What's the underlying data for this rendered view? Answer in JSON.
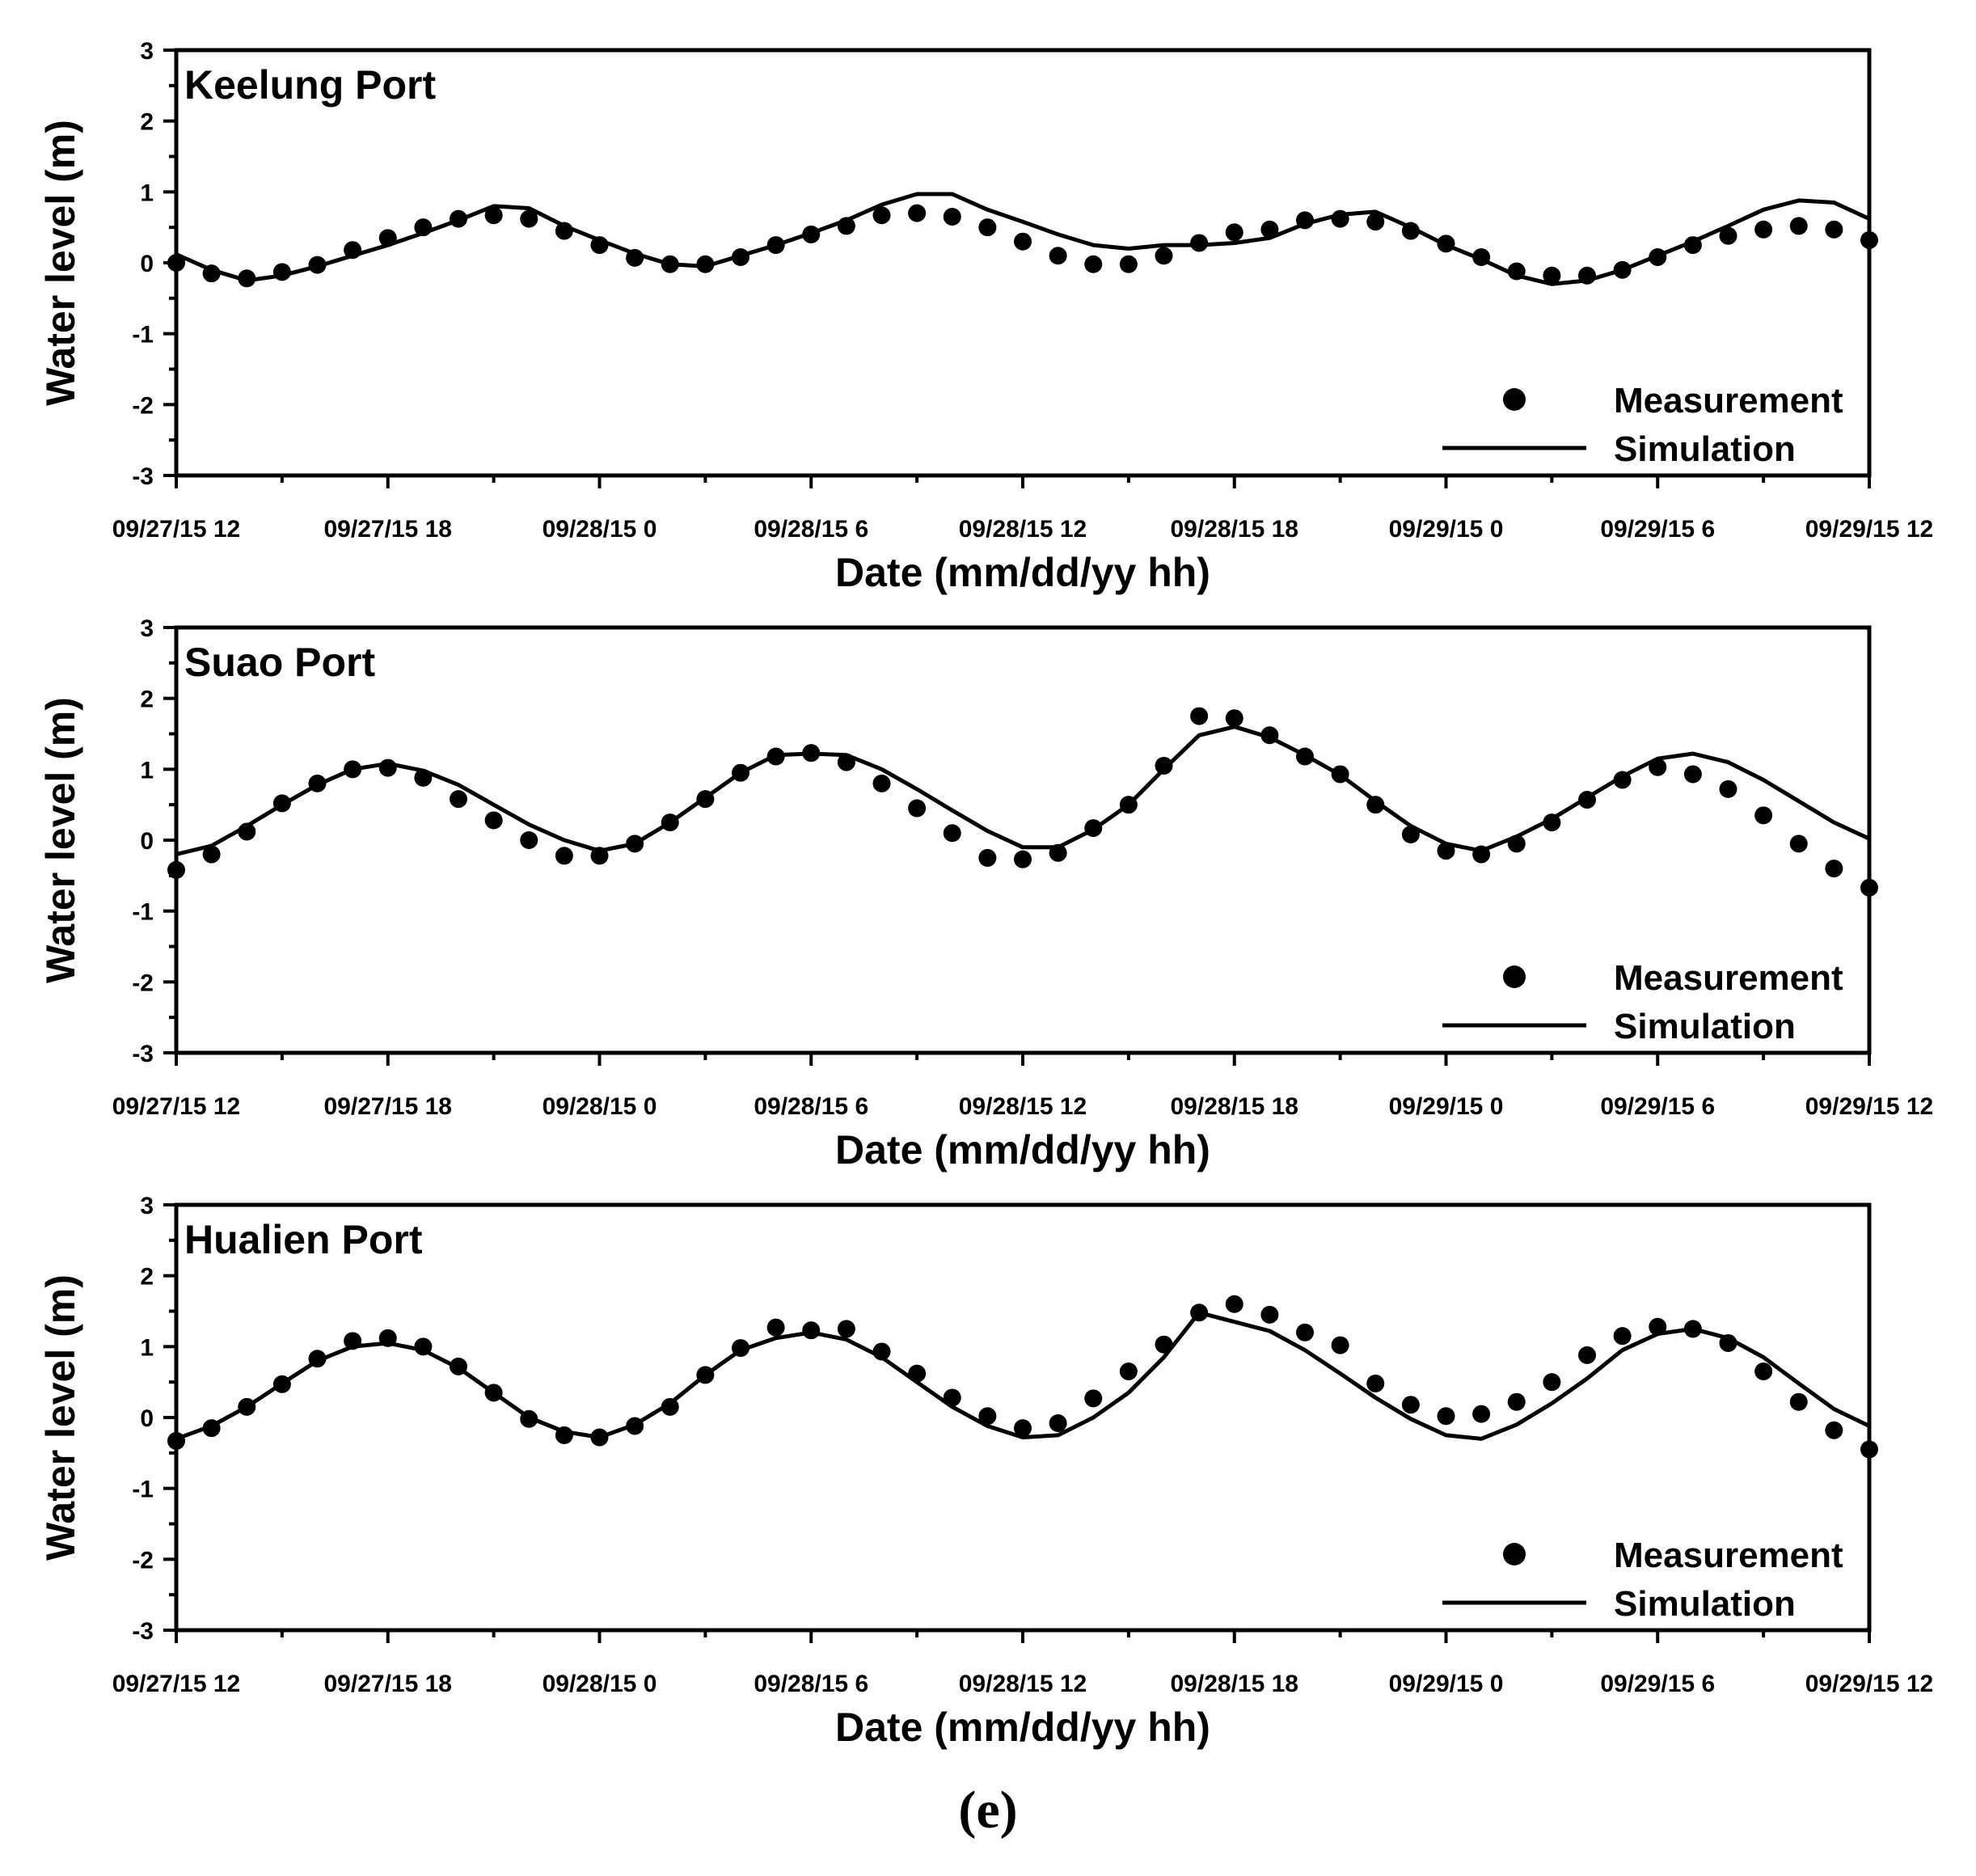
{
  "figure_label": "(e)",
  "chart_data": [
    {
      "type": "line",
      "title": "Keelung Port",
      "xlabel": "Date (mm/dd/yy hh)",
      "ylabel": "Water level (m)",
      "xlim": [
        0,
        48
      ],
      "ylim": [
        -3,
        3
      ],
      "xtick_positions": [
        0,
        6,
        12,
        18,
        24,
        30,
        36,
        42,
        48
      ],
      "xtick_labels": [
        "09/27/15 12",
        "09/27/15 18",
        "09/28/15 0",
        "09/28/15 6",
        "09/28/15 12",
        "09/28/15 18",
        "09/29/15 0",
        "09/29/15 6",
        "09/29/15 12"
      ],
      "yticks": [
        -3,
        -2,
        -1,
        0,
        1,
        2,
        3
      ],
      "legend": [
        "Measurement",
        "Simulation"
      ],
      "series": [
        {
          "name": "Measurement",
          "style": "markers",
          "x": [
            0,
            1,
            2,
            3,
            4,
            5,
            6,
            7,
            8,
            9,
            10,
            11,
            12,
            13,
            14,
            15,
            16,
            17,
            18,
            19,
            20,
            21,
            22,
            23,
            24,
            25,
            26,
            27,
            28,
            29,
            30,
            31,
            32,
            33,
            34,
            35,
            36,
            37,
            38,
            39,
            40,
            41,
            42,
            43,
            44,
            45,
            46,
            47,
            48
          ],
          "values": [
            0.0,
            -0.15,
            -0.22,
            -0.13,
            -0.03,
            0.18,
            0.35,
            0.5,
            0.62,
            0.67,
            0.62,
            0.45,
            0.25,
            0.07,
            -0.02,
            -0.02,
            0.08,
            0.25,
            0.4,
            0.52,
            0.67,
            0.7,
            0.65,
            0.5,
            0.3,
            0.1,
            -0.02,
            -0.02,
            0.1,
            0.28,
            0.43,
            0.47,
            0.6,
            0.62,
            0.58,
            0.45,
            0.27,
            0.08,
            -0.12,
            -0.18,
            -0.18,
            -0.1,
            0.08,
            0.25,
            0.38,
            0.47,
            0.52,
            0.47,
            0.32
          ]
        },
        {
          "name": "Simulation",
          "style": "line",
          "x": [
            0,
            1,
            2,
            3,
            4,
            5,
            6,
            7,
            8,
            9,
            10,
            11,
            12,
            13,
            14,
            15,
            16,
            17,
            18,
            19,
            20,
            21,
            22,
            23,
            24,
            25,
            26,
            27,
            28,
            29,
            30,
            31,
            32,
            33,
            34,
            35,
            36,
            37,
            38,
            39,
            40,
            41,
            42,
            43,
            44,
            45,
            46,
            47,
            48
          ],
          "values": [
            0.12,
            -0.1,
            -0.25,
            -0.18,
            -0.05,
            0.1,
            0.25,
            0.42,
            0.6,
            0.8,
            0.77,
            0.52,
            0.32,
            0.13,
            -0.02,
            -0.05,
            0.1,
            0.25,
            0.42,
            0.6,
            0.82,
            0.97,
            0.97,
            0.75,
            0.58,
            0.4,
            0.25,
            0.2,
            0.25,
            0.25,
            0.28,
            0.35,
            0.55,
            0.68,
            0.72,
            0.5,
            0.25,
            0.05,
            -0.18,
            -0.3,
            -0.25,
            -0.1,
            0.1,
            0.3,
            0.52,
            0.75,
            0.88,
            0.85,
            0.62
          ]
        }
      ]
    },
    {
      "type": "line",
      "title": "Suao Port",
      "xlabel": "Date (mm/dd/yy hh)",
      "ylabel": "Water level (m)",
      "xlim": [
        0,
        48
      ],
      "ylim": [
        -3,
        3
      ],
      "xtick_positions": [
        0,
        6,
        12,
        18,
        24,
        30,
        36,
        42,
        48
      ],
      "xtick_labels": [
        "09/27/15 12",
        "09/27/15 18",
        "09/28/15 0",
        "09/28/15 6",
        "09/28/15 12",
        "09/28/15 18",
        "09/29/15 0",
        "09/29/15 6",
        "09/29/15 12"
      ],
      "yticks": [
        -3,
        -2,
        -1,
        0,
        1,
        2,
        3
      ],
      "legend": [
        "Measurement",
        "Simulation"
      ],
      "series": [
        {
          "name": "Measurement",
          "style": "markers",
          "x": [
            0,
            1,
            2,
            3,
            4,
            5,
            6,
            7,
            8,
            9,
            10,
            11,
            12,
            13,
            14,
            15,
            16,
            17,
            18,
            19,
            20,
            21,
            22,
            23,
            24,
            25,
            26,
            27,
            28,
            29,
            30,
            31,
            32,
            33,
            34,
            35,
            36,
            37,
            38,
            39,
            40,
            41,
            42,
            43,
            44,
            45,
            46,
            47,
            48
          ],
          "values": [
            -0.42,
            -0.2,
            0.12,
            0.52,
            0.8,
            1.0,
            1.02,
            0.88,
            0.58,
            0.28,
            0.0,
            -0.22,
            -0.22,
            -0.05,
            0.25,
            0.58,
            0.95,
            1.18,
            1.23,
            1.1,
            0.8,
            0.45,
            0.1,
            -0.25,
            -0.27,
            -0.18,
            0.17,
            0.5,
            1.05,
            1.75,
            1.72,
            1.48,
            1.18,
            0.93,
            0.5,
            0.08,
            -0.15,
            -0.2,
            -0.05,
            0.25,
            0.57,
            0.85,
            1.03,
            0.93,
            0.72,
            0.35,
            -0.05,
            -0.4,
            -0.67
          ]
        },
        {
          "name": "Simulation",
          "style": "line",
          "x": [
            0,
            1,
            2,
            3,
            4,
            5,
            6,
            7,
            8,
            9,
            10,
            11,
            12,
            13,
            14,
            15,
            16,
            17,
            18,
            19,
            20,
            21,
            22,
            23,
            24,
            25,
            26,
            27,
            28,
            29,
            30,
            31,
            32,
            33,
            34,
            35,
            36,
            37,
            38,
            39,
            40,
            41,
            42,
            43,
            44,
            45,
            46,
            47,
            48
          ],
          "values": [
            -0.2,
            -0.08,
            0.2,
            0.5,
            0.78,
            1.0,
            1.08,
            0.98,
            0.78,
            0.5,
            0.22,
            0.0,
            -0.15,
            -0.05,
            0.25,
            0.6,
            0.95,
            1.2,
            1.22,
            1.2,
            1.0,
            0.72,
            0.42,
            0.13,
            -0.1,
            -0.1,
            0.15,
            0.5,
            1.0,
            1.48,
            1.6,
            1.45,
            1.2,
            0.92,
            0.55,
            0.2,
            -0.05,
            -0.15,
            0.05,
            0.3,
            0.6,
            0.9,
            1.15,
            1.22,
            1.1,
            0.85,
            0.55,
            0.25,
            0.02
          ]
        }
      ]
    },
    {
      "type": "line",
      "title": "Hualien Port",
      "xlabel": "Date (mm/dd/yy hh)",
      "ylabel": "Water level (m)",
      "xlim": [
        0,
        48
      ],
      "ylim": [
        -3,
        3
      ],
      "xtick_positions": [
        0,
        6,
        12,
        18,
        24,
        30,
        36,
        42,
        48
      ],
      "xtick_labels": [
        "09/27/15 12",
        "09/27/15 18",
        "09/28/15 0",
        "09/28/15 6",
        "09/28/15 12",
        "09/28/15 18",
        "09/29/15 0",
        "09/29/15 6",
        "09/29/15 12"
      ],
      "yticks": [
        -3,
        -2,
        -1,
        0,
        1,
        2,
        3
      ],
      "legend": [
        "Measurement",
        "Simulation"
      ],
      "series": [
        {
          "name": "Measurement",
          "style": "markers",
          "x": [
            0,
            1,
            2,
            3,
            4,
            5,
            6,
            7,
            8,
            9,
            10,
            11,
            12,
            13,
            14,
            15,
            16,
            17,
            18,
            19,
            20,
            21,
            22,
            23,
            24,
            25,
            26,
            27,
            28,
            29,
            30,
            31,
            32,
            33,
            34,
            35,
            36,
            37,
            38,
            39,
            40,
            41,
            42,
            43,
            44,
            45,
            46,
            47,
            48
          ],
          "values": [
            -0.33,
            -0.15,
            0.15,
            0.47,
            0.83,
            1.08,
            1.12,
            1.0,
            0.72,
            0.35,
            -0.02,
            -0.25,
            -0.28,
            -0.12,
            0.15,
            0.6,
            0.98,
            1.27,
            1.23,
            1.25,
            0.93,
            0.62,
            0.28,
            0.02,
            -0.15,
            -0.08,
            0.27,
            0.65,
            1.03,
            1.48,
            1.6,
            1.45,
            1.2,
            1.02,
            0.48,
            0.18,
            0.02,
            0.05,
            0.22,
            0.5,
            0.88,
            1.15,
            1.28,
            1.25,
            1.05,
            0.65,
            0.22,
            -0.18,
            -0.45
          ]
        },
        {
          "name": "Simulation",
          "style": "line",
          "x": [
            0,
            1,
            2,
            3,
            4,
            5,
            6,
            7,
            8,
            9,
            10,
            11,
            12,
            13,
            14,
            15,
            16,
            17,
            18,
            19,
            20,
            21,
            22,
            23,
            24,
            25,
            26,
            27,
            28,
            29,
            30,
            31,
            32,
            33,
            34,
            35,
            36,
            37,
            38,
            39,
            40,
            41,
            42,
            43,
            44,
            45,
            46,
            47,
            48
          ],
          "values": [
            -0.3,
            -0.12,
            0.15,
            0.48,
            0.8,
            1.0,
            1.05,
            0.95,
            0.7,
            0.35,
            0.0,
            -0.2,
            -0.28,
            -0.1,
            0.2,
            0.6,
            0.95,
            1.12,
            1.2,
            1.1,
            0.85,
            0.5,
            0.15,
            -0.12,
            -0.28,
            -0.25,
            0.0,
            0.35,
            0.85,
            1.48,
            1.35,
            1.22,
            0.95,
            0.62,
            0.28,
            -0.02,
            -0.25,
            -0.3,
            -0.1,
            0.2,
            0.55,
            0.95,
            1.18,
            1.25,
            1.12,
            0.85,
            0.48,
            0.12,
            -0.12
          ]
        }
      ]
    }
  ]
}
